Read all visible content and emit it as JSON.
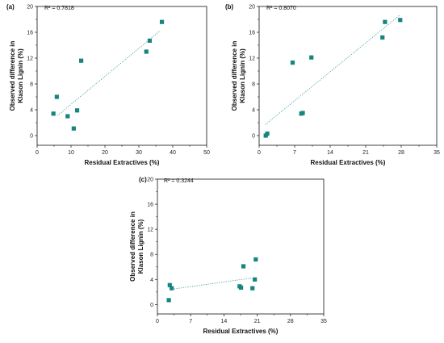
{
  "colors": {
    "marker": "#17857f",
    "fit_line": "#3fa39d",
    "axis": "#111111"
  },
  "chart_data": [
    {
      "type": "scatter",
      "panel_label": "(a)",
      "annotation": "R² = 0.7818",
      "xlabel": "Residual Extractives (%)",
      "ylabel": "Observed difference in Klason Lignin (%)",
      "ylabel_lines": [
        "Observed difference in",
        "Klason Lignin (%)"
      ],
      "xlim": [
        0,
        50
      ],
      "ylim": [
        -1.5,
        20
      ],
      "xticks": [
        0,
        10,
        20,
        30,
        40,
        50
      ],
      "yticks": [
        0,
        4,
        8,
        12,
        16,
        20
      ],
      "points": [
        {
          "x": 4.8,
          "y": 3.4
        },
        {
          "x": 5.8,
          "y": 6.0
        },
        {
          "x": 9.0,
          "y": 3.0
        },
        {
          "x": 10.8,
          "y": 1.1
        },
        {
          "x": 11.8,
          "y": 3.9
        },
        {
          "x": 13.0,
          "y": 11.6
        },
        {
          "x": 32.2,
          "y": 13.0
        },
        {
          "x": 33.2,
          "y": 14.7
        },
        {
          "x": 36.8,
          "y": 17.6
        }
      ],
      "fit_line": {
        "x": [
          6.0,
          36.2
        ],
        "y": [
          3.1,
          16.2
        ]
      }
    },
    {
      "type": "scatter",
      "panel_label": "(b)",
      "annotation": "R² = 0.8070",
      "xlabel": "Residual Extractives (%)",
      "ylabel": "Observed difference in Klason Lignin (%)",
      "ylabel_lines": [
        "Observed difference in",
        "Klason Lignin (%)"
      ],
      "xlim": [
        0,
        35
      ],
      "ylim": [
        -1.5,
        20
      ],
      "xticks": [
        0,
        7,
        14,
        21,
        28,
        35
      ],
      "yticks": [
        0,
        4,
        8,
        12,
        16,
        20
      ],
      "points": [
        {
          "x": 1.3,
          "y": 0.0
        },
        {
          "x": 1.6,
          "y": 0.3
        },
        {
          "x": 6.6,
          "y": 11.3
        },
        {
          "x": 8.3,
          "y": 3.4
        },
        {
          "x": 8.6,
          "y": 3.5
        },
        {
          "x": 10.3,
          "y": 12.1
        },
        {
          "x": 24.3,
          "y": 15.2
        },
        {
          "x": 24.8,
          "y": 17.6
        },
        {
          "x": 27.8,
          "y": 17.9
        }
      ],
      "fit_line": {
        "x": [
          1.2,
          27.8
        ],
        "y": [
          1.7,
          18.7
        ]
      }
    },
    {
      "type": "scatter",
      "panel_label": "(c)",
      "annotation": "R² = 0.3244",
      "xlabel": "Residual Extractives (%)",
      "ylabel": "Observed difference in Klason Lignin (%)",
      "ylabel_lines": [
        "Observed difference in",
        "Klason Lignin (%)"
      ],
      "xlim": [
        0,
        35
      ],
      "ylim": [
        -1.5,
        20
      ],
      "xticks": [
        0,
        7,
        14,
        21,
        28,
        35
      ],
      "yticks": [
        0,
        4,
        8,
        12,
        16,
        20
      ],
      "points": [
        {
          "x": 2.4,
          "y": 0.7
        },
        {
          "x": 2.6,
          "y": 3.1
        },
        {
          "x": 3.0,
          "y": 2.6
        },
        {
          "x": 17.3,
          "y": 2.9
        },
        {
          "x": 17.6,
          "y": 2.7
        },
        {
          "x": 18.1,
          "y": 6.1
        },
        {
          "x": 20.0,
          "y": 2.6
        },
        {
          "x": 20.5,
          "y": 4.0
        },
        {
          "x": 20.7,
          "y": 7.2
        }
      ],
      "fit_line": {
        "x": [
          2.6,
          20.6
        ],
        "y": [
          2.4,
          4.3
        ]
      }
    }
  ]
}
